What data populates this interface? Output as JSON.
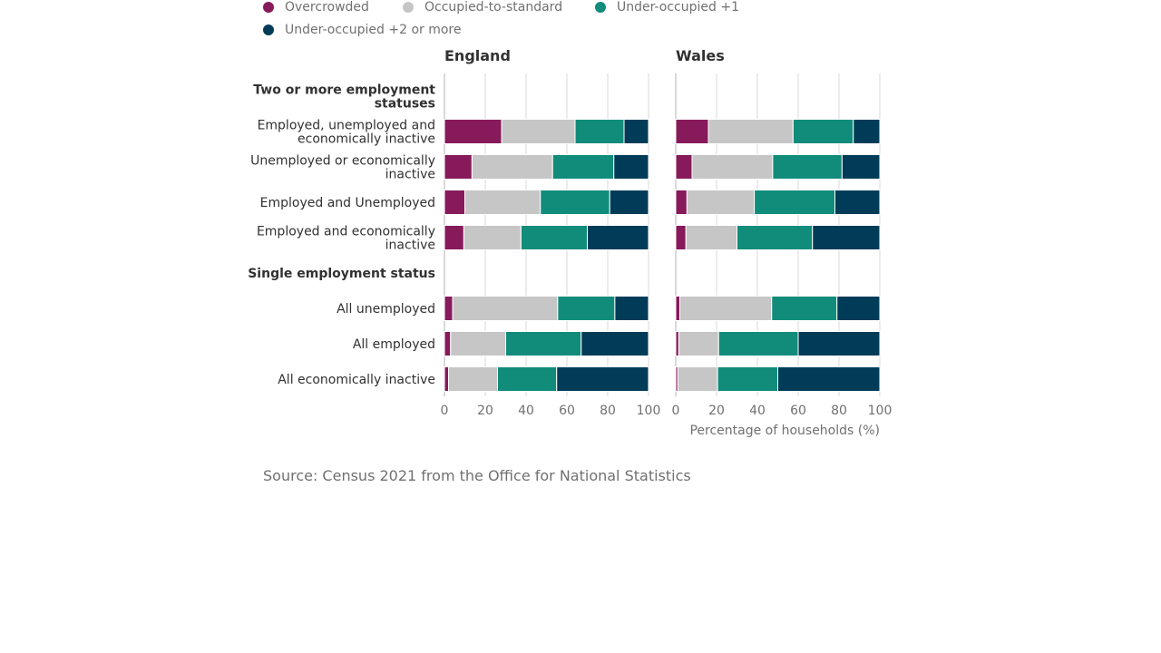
{
  "legend": {
    "items": [
      {
        "label": "Overcrowded",
        "color": "#871a5b"
      },
      {
        "label": "Occupied-to-standard",
        "color": "#c6c6c6"
      },
      {
        "label": "Under-occupied +1",
        "color": "#118c7b"
      },
      {
        "label": "Under-occupied +2 or more",
        "color": "#003c57"
      }
    ]
  },
  "source": "Source: Census 2021 from the Office for National Statistics",
  "chart_data": {
    "type": "bar",
    "orientation": "horizontal",
    "stacked": true,
    "xlabel": "Percentage of households (%)",
    "xlim": [
      0,
      100
    ],
    "xticks": [
      0,
      20,
      40,
      60,
      80,
      100
    ],
    "grid": true,
    "legend_position": "top-left",
    "series_names": [
      "Overcrowded",
      "Occupied-to-standard",
      "Under-occupied +1",
      "Under-occupied +2 or more"
    ],
    "series_colors": [
      "#871a5b",
      "#c6c6c6",
      "#118c7b",
      "#003c57"
    ],
    "rows": [
      {
        "label": "Two or more employment statuses",
        "heading": true
      },
      {
        "label": "Employed, unemployed and economically inactive"
      },
      {
        "label": "Unemployed or economically inactive"
      },
      {
        "label": "Employed and Unemployed"
      },
      {
        "label": "Employed and economically inactive"
      },
      {
        "label": "Single employment status",
        "heading": true
      },
      {
        "label": "All unemployed"
      },
      {
        "label": "All employed"
      },
      {
        "label": "All economically inactive"
      }
    ],
    "panels": [
      {
        "title": "England",
        "values": [
          null,
          [
            28,
            36,
            24,
            12
          ],
          [
            13.5,
            39.5,
            30,
            17
          ],
          [
            10,
            37,
            34,
            19
          ],
          [
            9.5,
            28,
            32.5,
            30
          ],
          null,
          [
            4,
            51.5,
            28,
            16.5
          ],
          [
            3,
            27,
            37,
            33
          ],
          [
            2,
            24,
            29,
            45
          ]
        ]
      },
      {
        "title": "Wales",
        "values": [
          null,
          [
            16,
            41.5,
            29.5,
            13
          ],
          [
            8,
            39.5,
            34,
            18.5
          ],
          [
            5.5,
            33,
            39.5,
            22
          ],
          [
            5,
            25,
            37,
            33
          ],
          null,
          [
            2,
            45,
            32,
            21
          ],
          [
            1.5,
            19.5,
            39,
            40
          ],
          [
            1,
            19.5,
            29.5,
            50
          ]
        ]
      }
    ]
  }
}
